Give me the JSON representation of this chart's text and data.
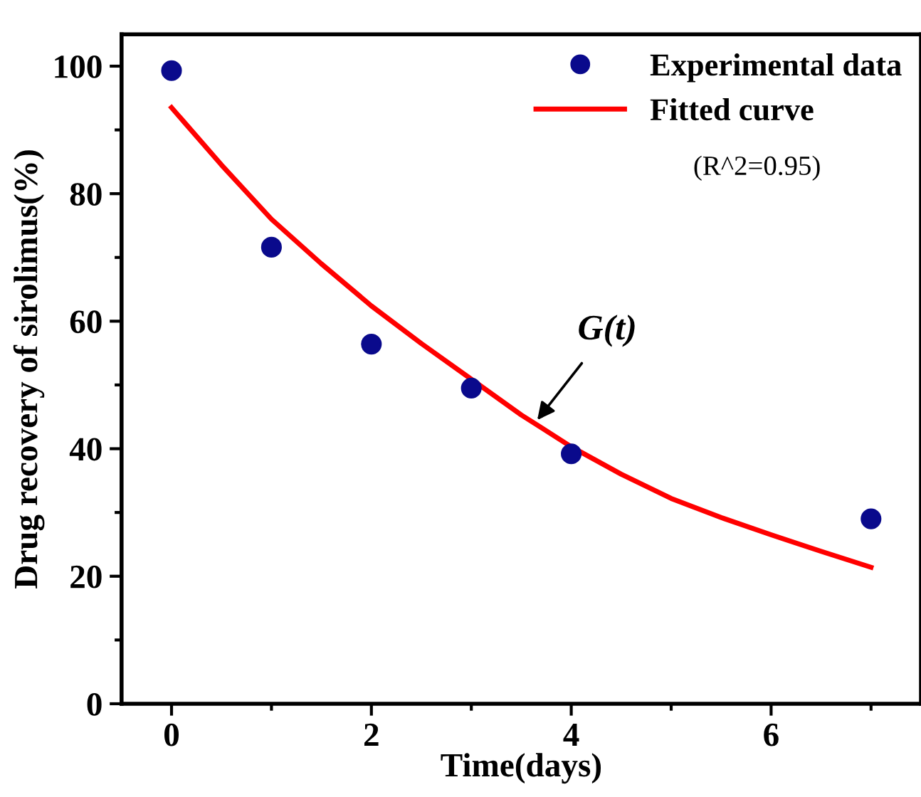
{
  "chart_data": {
    "type": "scatter",
    "xlabel": "Time(days)",
    "ylabel": "Drug recovery of sirolimus(%)",
    "xlim": [
      -0.5,
      7.5
    ],
    "ylim": [
      0,
      105
    ],
    "xticks": [
      0,
      2,
      4,
      6
    ],
    "yticks": [
      0,
      20,
      40,
      60,
      80,
      100
    ],
    "series": [
      {
        "name": "Experimental data",
        "color": "#0a0a8c",
        "marker": "circle",
        "x": [
          0,
          1,
          2,
          3,
          4,
          7
        ],
        "values": [
          99.3,
          71.6,
          56.4,
          49.5,
          39.2,
          29
        ]
      },
      {
        "name": "Fitted curve",
        "type": "line",
        "color": "#ff0000",
        "line_style": "solid",
        "x": [
          0,
          0.5,
          1,
          1.5,
          2,
          2.5,
          3,
          3.5,
          4,
          4.5,
          5,
          5.5,
          6,
          6.5,
          7
        ],
        "values": [
          93.5,
          84.5,
          76,
          69,
          62.4,
          56.5,
          50.9,
          45.3,
          40.3,
          36,
          32.2,
          29.2,
          26.5,
          23.9,
          21.4
        ]
      }
    ],
    "annotations": [
      "(R^2=0.95)",
      {
        "text": "G(t)",
        "x": 3.66,
        "y": 44.5
      }
    ],
    "legend": "top right",
    "grid": false
  }
}
